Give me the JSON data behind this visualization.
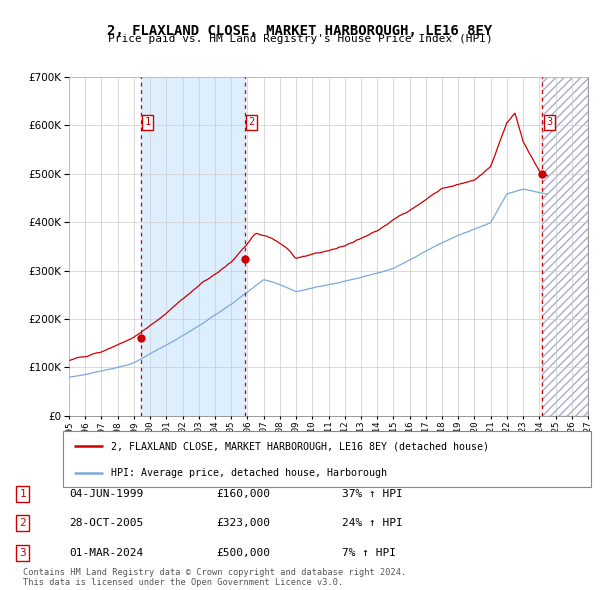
{
  "title": "2, FLAXLAND CLOSE, MARKET HARBOROUGH, LE16 8EY",
  "subtitle": "Price paid vs. HM Land Registry's House Price Index (HPI)",
  "ylim": [
    0,
    700000
  ],
  "yticks": [
    0,
    100000,
    200000,
    300000,
    400000,
    500000,
    600000,
    700000
  ],
  "ytick_labels": [
    "£0",
    "£100K",
    "£200K",
    "£300K",
    "£400K",
    "£500K",
    "£600K",
    "£700K"
  ],
  "hpi_color": "#7aaadd",
  "price_color": "#cc0000",
  "grid_color": "#cccccc",
  "shaded_region_color": "#ddeeff",
  "sale1_date": 1999.42,
  "sale1_price": 160000,
  "sale2_date": 2005.83,
  "sale2_price": 323000,
  "sale3_date": 2024.17,
  "sale3_price": 500000,
  "legend_line1": "2, FLAXLAND CLOSE, MARKET HARBOROUGH, LE16 8EY (detached house)",
  "legend_line2": "HPI: Average price, detached house, Harborough",
  "table_rows": [
    [
      "1",
      "04-JUN-1999",
      "£160,000",
      "37% ↑ HPI"
    ],
    [
      "2",
      "28-OCT-2005",
      "£323,000",
      "24% ↑ HPI"
    ],
    [
      "3",
      "01-MAR-2024",
      "£500,000",
      "7% ↑ HPI"
    ]
  ],
  "footnote": "Contains HM Land Registry data © Crown copyright and database right 2024.\nThis data is licensed under the Open Government Licence v3.0."
}
